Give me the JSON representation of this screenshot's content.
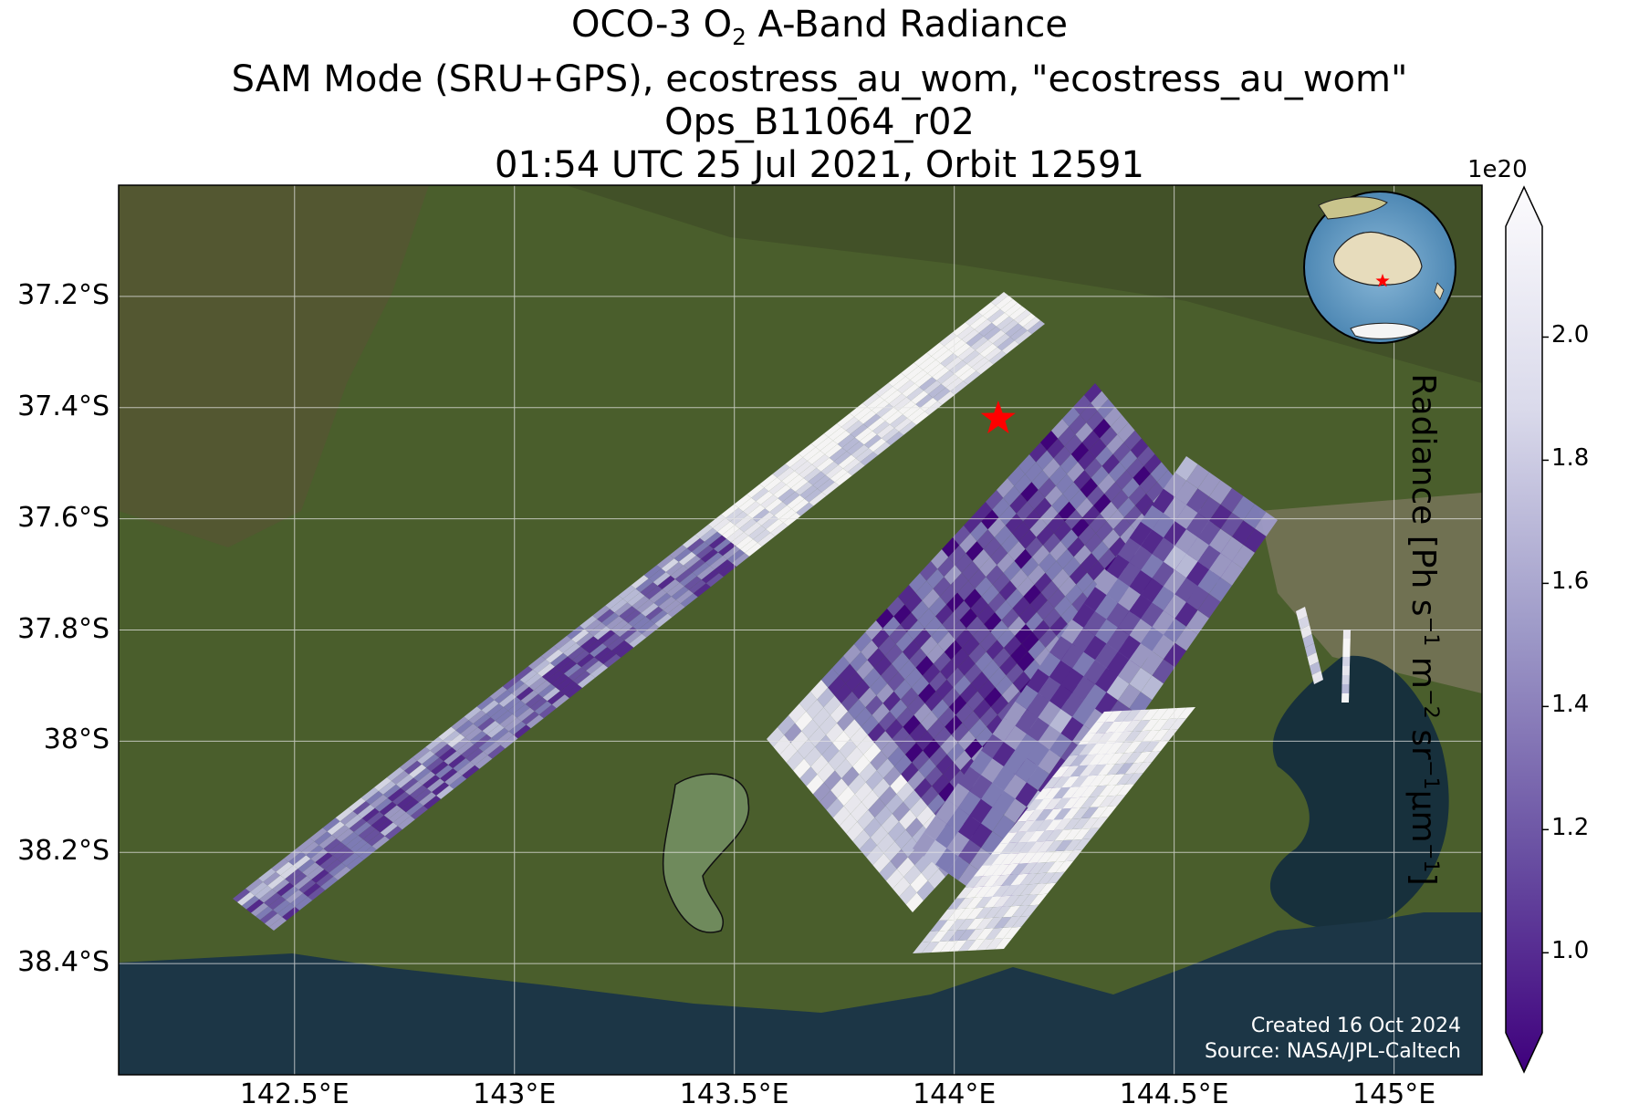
{
  "title": {
    "line1_pre": "OCO-3 O",
    "line1_sub": "2",
    "line1_post": " A-Band Radiance",
    "line2": "SAM Mode (SRU+GPS), ecostress_au_wom, \"ecostress_au_wom\"",
    "line3": "Ops_B11064_r02",
    "line4": "01:54 UTC 25 Jul 2021, Orbit 12591"
  },
  "map": {
    "extent_lon": [
      142.1,
      145.2
    ],
    "extent_lat": [
      -38.6,
      -37.0
    ],
    "lat_ticks": [
      {
        "value": -37.2,
        "label": "37.2°S"
      },
      {
        "value": -37.4,
        "label": "37.4°S"
      },
      {
        "value": -37.6,
        "label": "37.6°S"
      },
      {
        "value": -37.8,
        "label": "37.8°S"
      },
      {
        "value": -38.0,
        "label": "38°S"
      },
      {
        "value": -38.2,
        "label": "38.2°S"
      },
      {
        "value": -38.4,
        "label": "38.4°S"
      }
    ],
    "lon_ticks": [
      {
        "value": 142.5,
        "label": "142.5°E"
      },
      {
        "value": 143.0,
        "label": "143°E"
      },
      {
        "value": 143.5,
        "label": "143.5°E"
      },
      {
        "value": 144.0,
        "label": "144°E"
      },
      {
        "value": 144.5,
        "label": "144.5°E"
      },
      {
        "value": 145.0,
        "label": "145°E"
      }
    ],
    "target_star": {
      "lon": 144.1,
      "lat": -37.42,
      "color": "#ff0000"
    },
    "background": "satellite imagery (land, Port Phillip Bay, Bass Strait)",
    "inset": "globe locator centered on Australia with red star"
  },
  "colorbar": {
    "label_main": "Radiance [Ph s",
    "label_parts": [
      "Radiance [Ph s",
      "−1",
      " m",
      "−2",
      " sr",
      "−1",
      "μm",
      "−1",
      "]"
    ],
    "multiplier": "1e20",
    "vmin": 0.87,
    "vmax": 2.18,
    "ticks": [
      {
        "value": 1.0,
        "label": "1.0"
      },
      {
        "value": 1.2,
        "label": "1.2"
      },
      {
        "value": 1.4,
        "label": "1.4"
      },
      {
        "value": 1.6,
        "label": "1.6"
      },
      {
        "value": 1.8,
        "label": "1.8"
      },
      {
        "value": 2.0,
        "label": "2.0"
      }
    ],
    "colormap": "Purples_r",
    "extend": "both"
  },
  "credits": {
    "created": "Created 16 Oct 2024",
    "source": "Source: NASA/JPL-Caltech"
  }
}
